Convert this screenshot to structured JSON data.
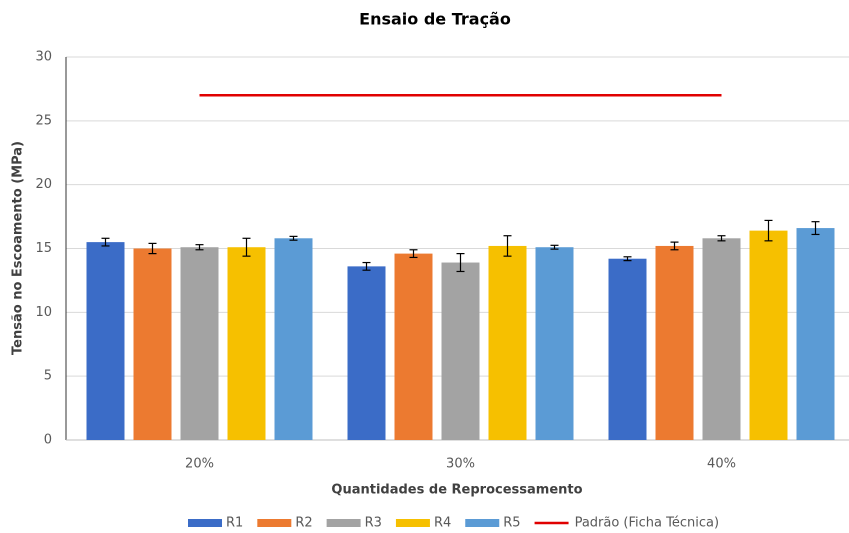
{
  "chart_data": {
    "type": "bar",
    "title": "Ensaio de Tração",
    "x_label": "Quantidades de Reprocessamento",
    "y_label": "Tensão no Escoamento (MPa)",
    "categories": [
      "20%",
      "30%",
      "40%"
    ],
    "series": [
      {
        "name": "R1",
        "color": "#3b6cc7",
        "values": [
          15.5,
          13.6,
          14.2
        ],
        "errors": [
          0.3,
          0.3,
          0.15
        ]
      },
      {
        "name": "R2",
        "color": "#ec7a30",
        "values": [
          15.0,
          14.6,
          15.2
        ],
        "errors": [
          0.4,
          0.3,
          0.3
        ]
      },
      {
        "name": "R3",
        "color": "#a3a3a3",
        "values": [
          15.1,
          13.9,
          15.8
        ],
        "errors": [
          0.2,
          0.7,
          0.2
        ]
      },
      {
        "name": "R4",
        "color": "#f6c000",
        "values": [
          15.1,
          15.2,
          16.4
        ],
        "errors": [
          0.7,
          0.8,
          0.8
        ]
      },
      {
        "name": "R5",
        "color": "#5b9bd5",
        "values": [
          15.8,
          15.1,
          16.6
        ],
        "errors": [
          0.15,
          0.15,
          0.5
        ]
      },
      {
        "name": "Padrão (Ficha Técnica)",
        "type": "line",
        "color": "#e00000",
        "values": [
          27,
          27,
          27
        ]
      }
    ],
    "ylim": [
      0,
      30
    ],
    "yticks": [
      0,
      5,
      10,
      15,
      20,
      25,
      30
    ],
    "grid": true
  }
}
